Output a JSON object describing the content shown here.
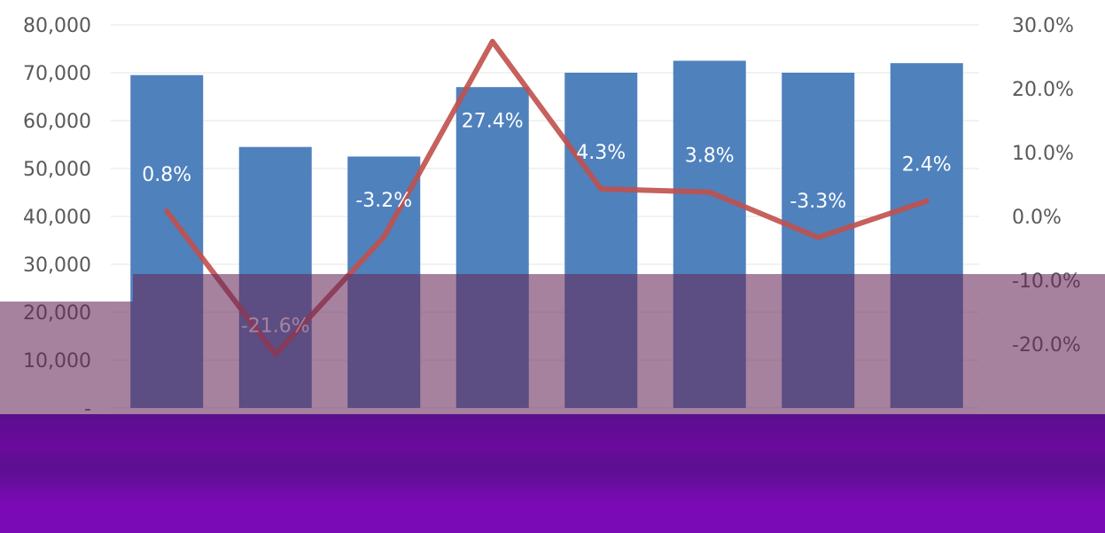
{
  "chart_data": {
    "type": "bar",
    "categories": [
      "",
      "",
      "",
      "",
      "",
      "",
      "",
      ""
    ],
    "series": [
      {
        "kind": "bar",
        "axis": "left",
        "color": "#4f81bd",
        "values": [
          69500,
          54500,
          52500,
          67000,
          70000,
          72500,
          70000,
          72000
        ]
      },
      {
        "kind": "line",
        "axis": "right",
        "color": "#c0504d",
        "values": [
          0.8,
          -21.6,
          -3.2,
          27.4,
          4.3,
          3.8,
          -3.3,
          2.4
        ],
        "labels": [
          "0.8%",
          "-21.6%",
          "-3.2%",
          "27.4%",
          "4.3%",
          "3.8%",
          "-3.3%",
          "2.4%"
        ]
      }
    ],
    "ylim": [
      0,
      80000
    ],
    "y2lim": [
      -30,
      30
    ],
    "yticks": [
      "-",
      "10,000",
      "20,000",
      "30,000",
      "40,000",
      "50,000",
      "60,000",
      "70,000",
      "80,000"
    ],
    "y2ticks": [
      "-20.0%",
      "-10.0%",
      "0.0%",
      "10.0%",
      "20.0%",
      "30.0%"
    ],
    "grid": true,
    "legend": "none"
  },
  "overlay": {
    "top_color": "#66285a",
    "bottom_color": "#6a0a9c",
    "bar_shadow_color": "#0d0a55"
  }
}
